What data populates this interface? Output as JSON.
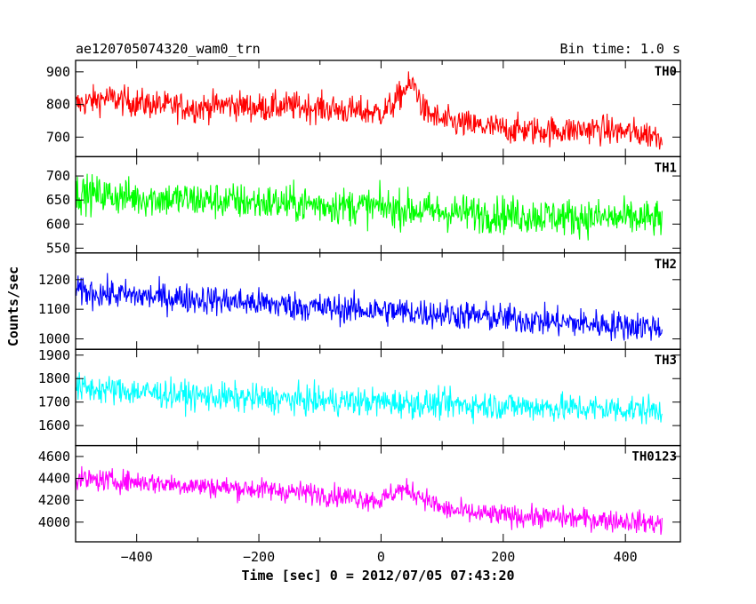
{
  "chart_data": {
    "type": "line",
    "title_left": "ae120705074320_wam0_trn",
    "title_right": "Bin time: 1.0 s",
    "xlabel": "Time [sec] 0 = 2012/07/05 07:43:20",
    "ylabel": "Counts/sec",
    "xlim": [
      -500,
      490
    ],
    "x_ticks": [
      -400,
      -200,
      0,
      200,
      400
    ],
    "x_range_data": [
      -500,
      460
    ],
    "grid": false,
    "panels": [
      {
        "name": "TH0",
        "color": "#ff0000",
        "ylim": [
          640,
          935
        ],
        "y_ticks": [
          700,
          800,
          900
        ],
        "x": [
          -500,
          -450,
          -400,
          -350,
          -300,
          -250,
          -200,
          -150,
          -100,
          -50,
          0,
          20,
          40,
          55,
          70,
          100,
          150,
          200,
          250,
          300,
          350,
          400,
          460
        ],
        "y": [
          800,
          820,
          805,
          795,
          790,
          800,
          790,
          795,
          790,
          780,
          775,
          800,
          850,
          860,
          780,
          750,
          735,
          725,
          720,
          720,
          725,
          715,
          705
        ],
        "noise": 40
      },
      {
        "name": "TH1",
        "color": "#00ff00",
        "ylim": [
          540,
          740
        ],
        "y_ticks": [
          550,
          600,
          650,
          700
        ],
        "x": [
          -500,
          -400,
          -300,
          -200,
          -100,
          0,
          100,
          200,
          300,
          400,
          460
        ],
        "y": [
          665,
          655,
          650,
          645,
          640,
          635,
          625,
          620,
          615,
          612,
          610
        ],
        "noise": 35
      },
      {
        "name": "TH2",
        "color": "#0000ff",
        "ylim": [
          965,
          1290
        ],
        "y_ticks": [
          1000,
          1100,
          1200
        ],
        "x": [
          -500,
          -400,
          -300,
          -200,
          -100,
          0,
          100,
          200,
          300,
          400,
          460
        ],
        "y": [
          1160,
          1145,
          1135,
          1120,
          1105,
          1095,
          1085,
          1070,
          1055,
          1045,
          1040
        ],
        "noise": 45
      },
      {
        "name": "TH3",
        "color": "#00ffff",
        "ylim": [
          1515,
          1925
        ],
        "y_ticks": [
          1600,
          1700,
          1800,
          1900
        ],
        "x": [
          -500,
          -400,
          -300,
          -200,
          -100,
          0,
          100,
          200,
          300,
          400,
          460
        ],
        "y": [
          1760,
          1745,
          1725,
          1715,
          1705,
          1700,
          1690,
          1685,
          1675,
          1670,
          1665
        ],
        "noise": 55
      },
      {
        "name": "TH0123",
        "color": "#ff00ff",
        "ylim": [
          3820,
          4700
        ],
        "y_ticks": [
          4000,
          4200,
          4400,
          4600
        ],
        "x": [
          -500,
          -400,
          -300,
          -200,
          -100,
          0,
          30,
          60,
          100,
          150,
          200,
          300,
          400,
          460
        ],
        "y": [
          4390,
          4370,
          4330,
          4300,
          4260,
          4200,
          4300,
          4260,
          4120,
          4080,
          4060,
          4040,
          4010,
          3985
        ],
        "noise": 90
      }
    ]
  }
}
